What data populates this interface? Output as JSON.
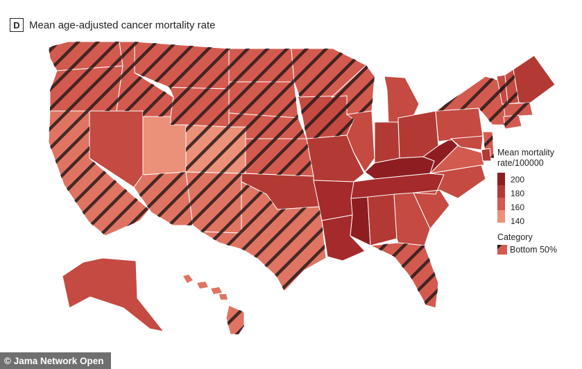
{
  "header": {
    "panel_letter": "D",
    "title": "Mean age-adjusted cancer mortality rate"
  },
  "legend": {
    "scale_title_line1": "Mean mortality",
    "scale_title_line2": "rate/100000",
    "ticks": [
      "200",
      "180",
      "160",
      "140"
    ],
    "category_title": "Category",
    "category_label": "Bottom 50%"
  },
  "credit": "© Jama Network Open",
  "colors": {
    "r200": "#8e1d22",
    "r190": "#a42a2b",
    "r180": "#b33a34",
    "r170": "#c44a42",
    "r160": "#d35a4f",
    "r150": "#e07462",
    "r140": "#eb9079",
    "hatch": "#2a1a1a",
    "border": "#ffffff",
    "text": "#222222"
  },
  "chart_data": {
    "type": "map",
    "title": "Mean age-adjusted cancer mortality rate",
    "color_scale": {
      "label": "Mean mortality rate/100000",
      "min": 140,
      "max": 200,
      "ticks": [
        140,
        160,
        180,
        200
      ]
    },
    "categories": [
      "Bottom 50%"
    ],
    "states": [
      {
        "id": "WA",
        "rate": 160,
        "bottom50": true
      },
      {
        "id": "OR",
        "rate": 165,
        "bottom50": true
      },
      {
        "id": "CA",
        "rate": 150,
        "bottom50": true
      },
      {
        "id": "NV",
        "rate": 172,
        "bottom50": false
      },
      {
        "id": "ID",
        "rate": 158,
        "bottom50": true
      },
      {
        "id": "MT",
        "rate": 160,
        "bottom50": true
      },
      {
        "id": "WY",
        "rate": 158,
        "bottom50": true
      },
      {
        "id": "UT",
        "rate": 138,
        "bottom50": false
      },
      {
        "id": "AZ",
        "rate": 150,
        "bottom50": true
      },
      {
        "id": "CO",
        "rate": 147,
        "bottom50": true
      },
      {
        "id": "NM",
        "rate": 150,
        "bottom50": true
      },
      {
        "id": "ND",
        "rate": 160,
        "bottom50": true
      },
      {
        "id": "SD",
        "rate": 162,
        "bottom50": true
      },
      {
        "id": "NE",
        "rate": 160,
        "bottom50": true
      },
      {
        "id": "KS",
        "rate": 165,
        "bottom50": true
      },
      {
        "id": "OK",
        "rate": 185,
        "bottom50": false
      },
      {
        "id": "TX",
        "rate": 155,
        "bottom50": true
      },
      {
        "id": "MN",
        "rate": 160,
        "bottom50": true
      },
      {
        "id": "IA",
        "rate": 168,
        "bottom50": true
      },
      {
        "id": "MO",
        "rate": 178,
        "bottom50": false
      },
      {
        "id": "AR",
        "rate": 188,
        "bottom50": false
      },
      {
        "id": "LA",
        "rate": 190,
        "bottom50": false
      },
      {
        "id": "WI",
        "rate": 166,
        "bottom50": true
      },
      {
        "id": "IL",
        "rate": 172,
        "bottom50": false
      },
      {
        "id": "MI",
        "rate": 174,
        "bottom50": false
      },
      {
        "id": "IN",
        "rate": 185,
        "bottom50": false
      },
      {
        "id": "OH",
        "rate": 182,
        "bottom50": false
      },
      {
        "id": "KY",
        "rate": 200,
        "bottom50": false
      },
      {
        "id": "TN",
        "rate": 190,
        "bottom50": false
      },
      {
        "id": "MS",
        "rate": 195,
        "bottom50": false
      },
      {
        "id": "AL",
        "rate": 182,
        "bottom50": false
      },
      {
        "id": "GA",
        "rate": 170,
        "bottom50": false
      },
      {
        "id": "FL",
        "rate": 160,
        "bottom50": true
      },
      {
        "id": "SC",
        "rate": 174,
        "bottom50": false
      },
      {
        "id": "NC",
        "rate": 170,
        "bottom50": false
      },
      {
        "id": "VA",
        "rate": 165,
        "bottom50": false
      },
      {
        "id": "WV",
        "rate": 195,
        "bottom50": false
      },
      {
        "id": "PA",
        "rate": 175,
        "bottom50": false
      },
      {
        "id": "NY",
        "rate": 160,
        "bottom50": true
      },
      {
        "id": "VT",
        "rate": 168,
        "bottom50": true
      },
      {
        "id": "NH",
        "rate": 168,
        "bottom50": true
      },
      {
        "id": "ME",
        "rate": 185,
        "bottom50": false
      },
      {
        "id": "MA",
        "rate": 165,
        "bottom50": true
      },
      {
        "id": "CT",
        "rate": 160,
        "bottom50": true
      },
      {
        "id": "NJ",
        "rate": 165,
        "bottom50": true
      },
      {
        "id": "DE",
        "rate": 180,
        "bottom50": false
      },
      {
        "id": "MD",
        "rate": 170,
        "bottom50": false
      },
      {
        "id": "AK",
        "rate": 168,
        "bottom50": false
      },
      {
        "id": "HI",
        "rate": 148,
        "bottom50": true
      }
    ]
  }
}
